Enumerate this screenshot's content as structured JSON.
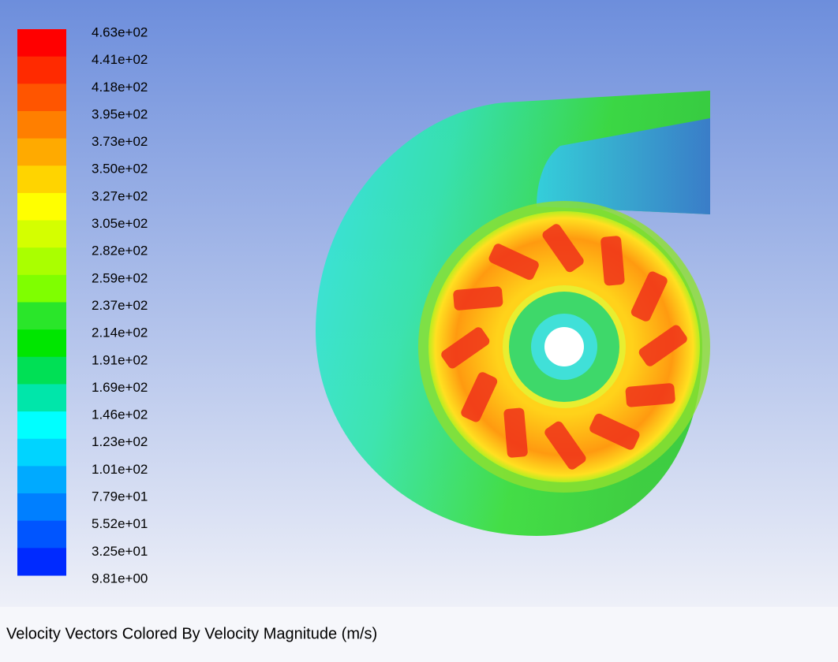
{
  "legend": {
    "labels": [
      "4.63e+02",
      "4.41e+02",
      "4.18e+02",
      "3.95e+02",
      "3.73e+02",
      "3.50e+02",
      "3.27e+02",
      "3.05e+02",
      "2.82e+02",
      "2.59e+02",
      "2.37e+02",
      "2.14e+02",
      "1.91e+02",
      "1.69e+02",
      "1.46e+02",
      "1.23e+02",
      "1.01e+02",
      "7.79e+01",
      "5.52e+01",
      "3.25e+01",
      "9.81e+00"
    ]
  },
  "caption": "Velocity Vectors Colored By Velocity Magnitude (m/s)"
}
